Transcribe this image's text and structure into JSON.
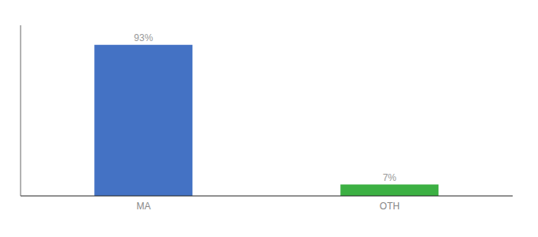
{
  "chart_data": {
    "type": "bar",
    "categories": [
      "MA",
      "OTH"
    ],
    "values": [
      93,
      7
    ],
    "value_labels": [
      "93%",
      "7%"
    ],
    "colors": [
      "#4472c4",
      "#3cb043"
    ],
    "ylim": [
      0,
      105
    ],
    "data_labels": true,
    "tick_labels": "x"
  }
}
